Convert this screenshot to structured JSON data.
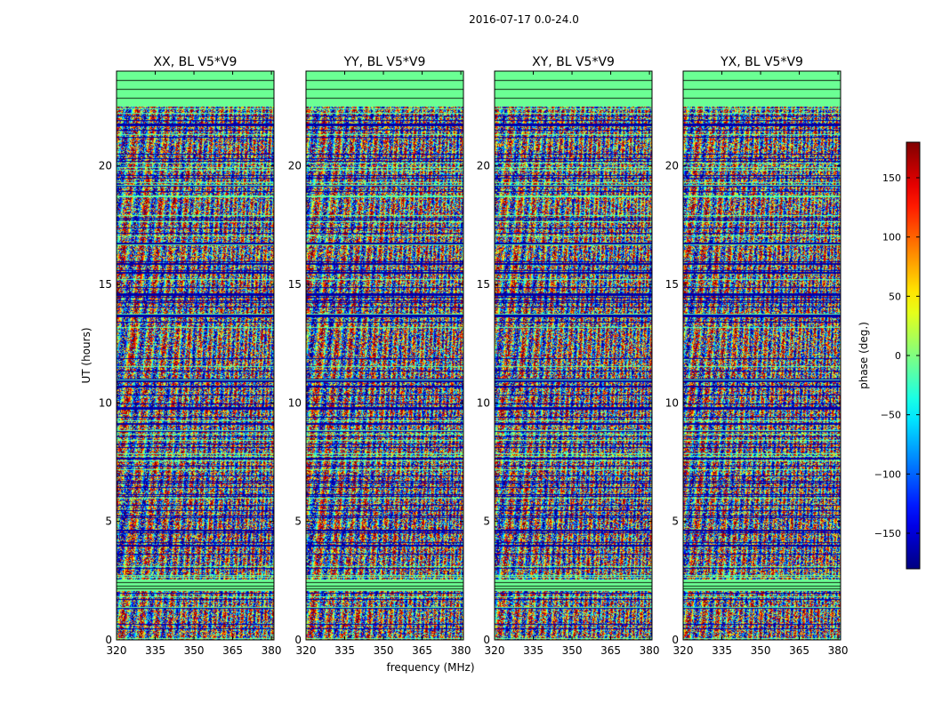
{
  "figure": {
    "suptitle": "2016-07-17 0.0-24.0",
    "xlabel": "frequency (MHz)",
    "ylabel": "UT (hours)"
  },
  "chart_data": {
    "type": "heatmap",
    "colormap": "jet",
    "panels": [
      {
        "title": "XX, BL V5*V9",
        "pol": "XX"
      },
      {
        "title": "YY, BL V5*V9",
        "pol": "YY"
      },
      {
        "title": "XY, BL V5*V9",
        "pol": "XY"
      },
      {
        "title": "YX, BL V5*V9",
        "pol": "YX"
      }
    ],
    "x": {
      "label": "frequency (MHz)",
      "range": [
        320,
        381
      ],
      "ticks": [
        320,
        335,
        350,
        365,
        380
      ]
    },
    "y": {
      "label": "UT (hours)",
      "range": [
        0,
        24
      ],
      "ticks": [
        0,
        5,
        10,
        15,
        20
      ]
    },
    "colorbar": {
      "label": "phase (deg.)",
      "range": [
        -180,
        180
      ],
      "ticks": [
        -150,
        -100,
        -50,
        0,
        50,
        100,
        150
      ]
    },
    "flagged_uniform_bands_hours": [
      [
        2.05,
        2.55
      ],
      [
        22.5,
        24.0
      ]
    ],
    "grid": false
  }
}
